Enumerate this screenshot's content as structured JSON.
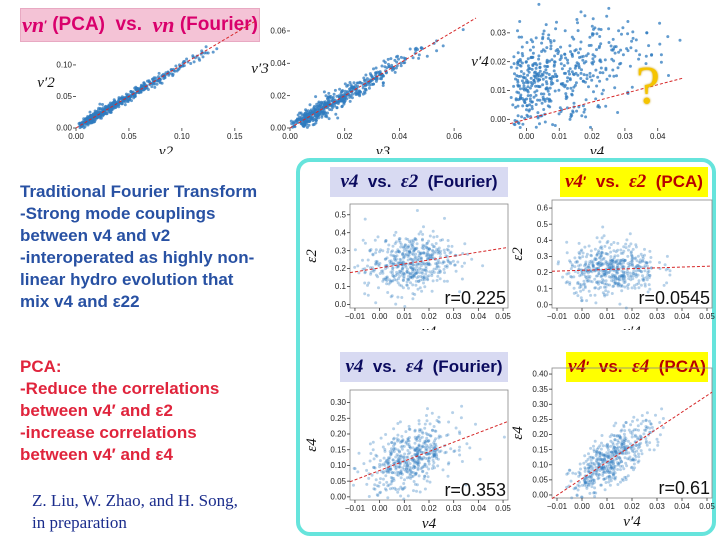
{
  "header": {
    "title_parts": [
      "v",
      "n",
      "′",
      " (PCA)  vs.  ",
      "v",
      "n",
      " (Fourier)"
    ]
  },
  "question_mark": "?",
  "left_text": {
    "fourier_heading": "Traditional Fourier Transform",
    "fourier_lines": [
      "-Strong mode couplings",
      "between v4 and v2",
      "-interoperated as highly non-",
      "linear hydro evolution that",
      "mix v4 and ε22"
    ],
    "pca_heading": "PCA:",
    "pca_lines": [
      "-Reduce the correlations",
      "between v4′ and ε2",
      "-increase correlations",
      "between v4′ and ε4"
    ]
  },
  "citation": [
    "Z. Liu, W. Zhao, and H. Song,",
    "in preparation"
  ],
  "colors": {
    "point": "#2f7bbf",
    "fit_line": "#d62728",
    "pink": "#d9006c",
    "teal": "#66e4dc",
    "heading_blue": "#2851a3",
    "red_text": "#e0243c"
  },
  "chart_data": [
    {
      "type": "scatter",
      "id": "top1",
      "xlabel": "v2",
      "ylabel": "v′2",
      "xticks": [
        "0.00",
        "0.05",
        "0.10",
        "0.15"
      ],
      "yticks": [
        "0.00",
        "0.05",
        "0.10"
      ],
      "xlim": [
        0.0,
        0.17
      ],
      "ylim": [
        0.0,
        0.13
      ],
      "trend": {
        "slope": 1.0,
        "spread": 0.004
      },
      "n_points": 500
    },
    {
      "type": "scatter",
      "id": "top2",
      "xlabel": "v3",
      "ylabel": "v′3",
      "xticks": [
        "0.00",
        "0.02",
        "0.04",
        "0.06"
      ],
      "yticks": [
        "0.00",
        "0.02",
        "0.04",
        "0.06"
      ],
      "xlim": [
        0.0,
        0.068
      ],
      "ylim": [
        0.0,
        0.068
      ],
      "trend": {
        "slope": 1.0,
        "spread": 0.003
      },
      "n_points": 500
    },
    {
      "type": "scatter",
      "id": "top3",
      "xlabel": "v4",
      "ylabel": "v′4",
      "xticks": [
        "0.00",
        "0.01",
        "0.02",
        "0.03",
        "0.04"
      ],
      "yticks": [
        "0.00",
        "0.01",
        "0.02",
        "0.03"
      ],
      "xlim": [
        -0.005,
        0.048
      ],
      "ylim": [
        -0.003,
        0.04
      ],
      "trend": {
        "slope": 0.3,
        "spread": 0.009
      },
      "n_points": 500
    },
    {
      "type": "scatter",
      "id": "m1",
      "label_parts": [
        "v",
        "4",
        "  vs.  ",
        "ε",
        "2",
        "  (Fourier)"
      ],
      "xlabel": "v4",
      "ylabel": "ε2",
      "xticks": [
        "−0.01",
        "0.00",
        "0.01",
        "0.02",
        "0.03",
        "0.04",
        "0.05"
      ],
      "yticks": [
        "0.0",
        "0.1",
        "0.2",
        "0.3",
        "0.4",
        "0.5"
      ],
      "xlim": [
        -0.012,
        0.052
      ],
      "ylim": [
        -0.02,
        0.56
      ],
      "r_value": "r=0.225",
      "trend": {
        "cx": 0.012,
        "cy": 0.23,
        "slope": 2.2,
        "xspread": 0.009,
        "yspread": 0.08
      },
      "n_points": 500
    },
    {
      "type": "scatter",
      "id": "m2",
      "label_parts": [
        "v",
        "4",
        "′",
        "  vs.  ",
        "ε",
        "2",
        "  (PCA)"
      ],
      "xlabel": "v′4",
      "ylabel": "ε2",
      "xticks": [
        "−0.01",
        "0.00",
        "0.01",
        "0.02",
        "0.03",
        "0.04",
        "0.05"
      ],
      "yticks": [
        "0.0",
        "0.1",
        "0.2",
        "0.3",
        "0.4",
        "0.5",
        "0.6"
      ],
      "xlim": [
        -0.012,
        0.052
      ],
      "ylim": [
        -0.02,
        0.65
      ],
      "r_value": "r=0.0545",
      "trend": {
        "cx": 0.012,
        "cy": 0.22,
        "slope": 0.5,
        "xspread": 0.009,
        "yspread": 0.08
      },
      "n_points": 500
    },
    {
      "type": "scatter",
      "id": "b1",
      "label_parts": [
        "v",
        "4",
        "  vs.  ",
        "ε",
        "4",
        "  (Fourier)"
      ],
      "xlabel": "v4",
      "ylabel": "ε4",
      "xticks": [
        "−0.01",
        "0.00",
        "0.01",
        "0.02",
        "0.03",
        "0.04",
        "0.05"
      ],
      "yticks": [
        "0.00",
        "0.05",
        "0.10",
        "0.15",
        "0.20",
        "0.25",
        "0.30"
      ],
      "xlim": [
        -0.012,
        0.052
      ],
      "ylim": [
        -0.01,
        0.34
      ],
      "r_value": "r=0.353",
      "trend": {
        "cx": 0.012,
        "cy": 0.12,
        "slope": 3.0,
        "xspread": 0.009,
        "yspread": 0.05
      },
      "n_points": 500
    },
    {
      "type": "scatter",
      "id": "b2",
      "label_parts": [
        "v",
        "4",
        "′",
        "  vs.  ",
        "ε",
        "4",
        "  (PCA)"
      ],
      "xlabel": "v′4",
      "ylabel": "ε4",
      "xticks": [
        "−0.01",
        "0.00",
        "0.01",
        "0.02",
        "0.03",
        "0.04",
        "0.05"
      ],
      "yticks": [
        "0.00",
        "0.05",
        "0.10",
        "0.15",
        "0.20",
        "0.25",
        "0.30",
        "0.35",
        "0.40"
      ],
      "xlim": [
        -0.012,
        0.052
      ],
      "ylim": [
        -0.01,
        0.42
      ],
      "r_value": "r=0.61",
      "trend": {
        "cx": 0.012,
        "cy": 0.12,
        "slope": 5.5,
        "xspread": 0.008,
        "yspread": 0.04
      },
      "n_points": 500
    }
  ]
}
